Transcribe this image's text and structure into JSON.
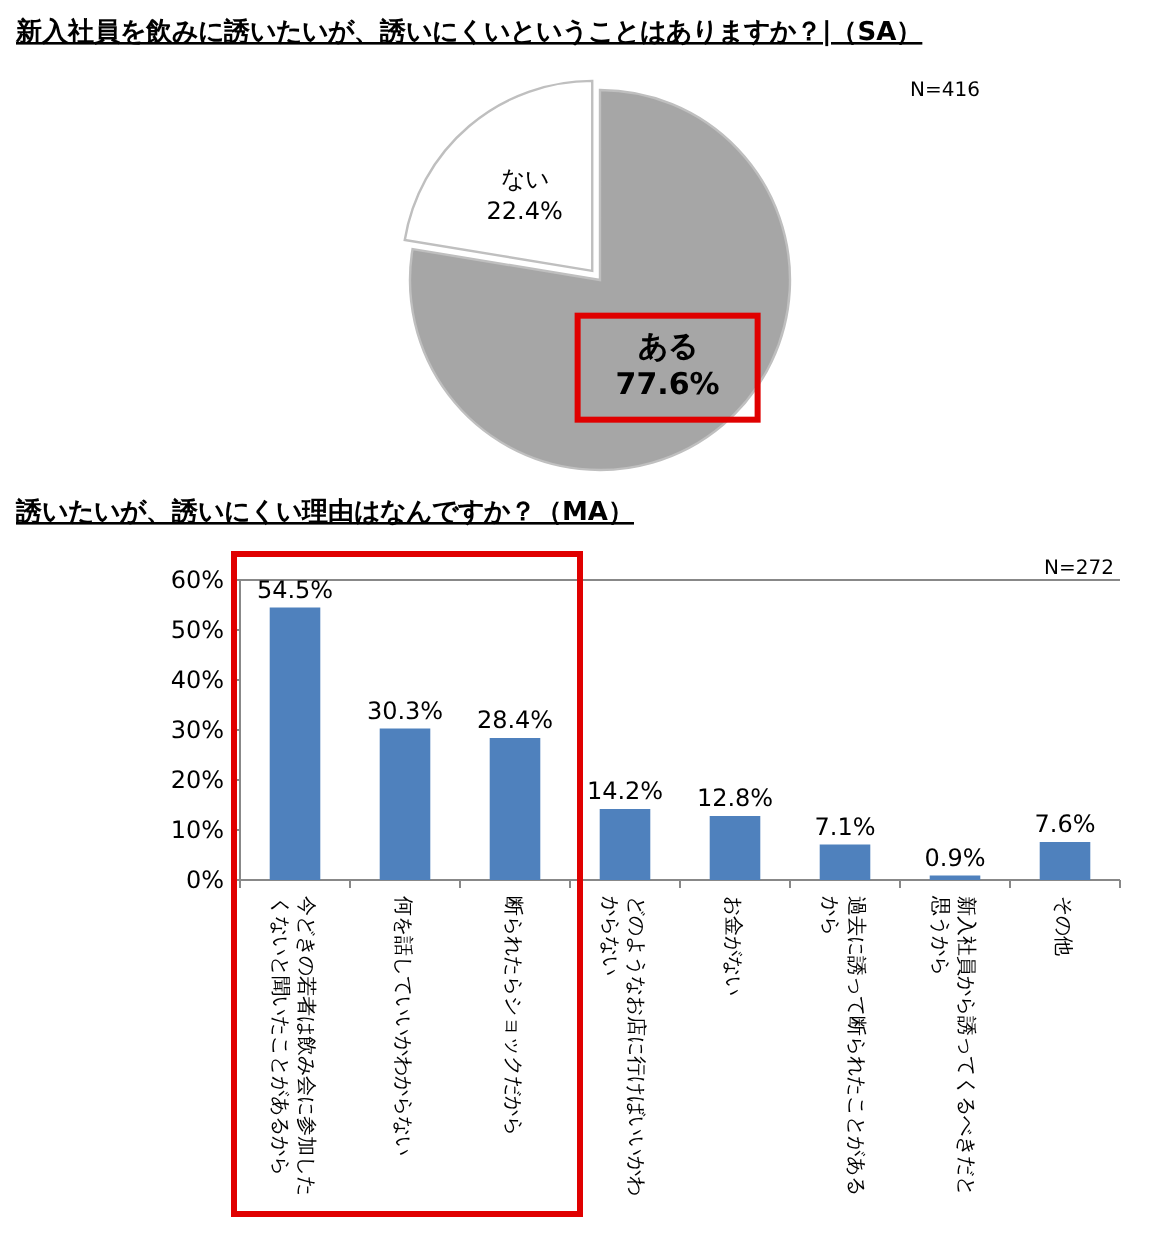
{
  "chart_data": [
    {
      "type": "pie",
      "title": "新入社員を飲みに誘いたいが、誘いにくいということはありますか？|（SA）",
      "categories": [
        "ある",
        "ない"
      ],
      "values": [
        77.6,
        22.4
      ],
      "colors": [
        "#a6a6a6",
        "#ffffff"
      ],
      "value_labels": [
        "77.6%",
        "22.4%"
      ],
      "annotations": [
        "N=416"
      ]
    },
    {
      "type": "bar",
      "title": "誘いたいが、誘いにくい理由はなんですか？（MA）",
      "categories": [
        "今どきの若者は飲み会に参加したくないと聞いたことがあるから",
        "何を話していいかわからない",
        "断られたらショックだから",
        "どのようなお店に行けばいいかわからない",
        "お金がない",
        "過去に誘って断られたことがあるから",
        "新入社員から誘ってくるべきだと思うから",
        "その他"
      ],
      "values": [
        54.5,
        30.3,
        28.4,
        14.2,
        12.8,
        7.1,
        0.9,
        7.6
      ],
      "color": "#4f81bd",
      "value_labels": [
        "54.5%",
        "30.3%",
        "28.4%",
        "14.2%",
        "12.8%",
        "7.1%",
        "0.9%",
        "7.6%"
      ],
      "ylim": [
        0,
        60
      ],
      "yticks": [
        {
          "value": 0,
          "label": "0%"
        },
        {
          "value": 10,
          "label": "10%"
        },
        {
          "value": 20,
          "label": "20%"
        },
        {
          "value": 30,
          "label": "30%"
        },
        {
          "value": 40,
          "label": "40%"
        },
        {
          "value": 50,
          "label": "50%"
        },
        {
          "value": 60,
          "label": "60%"
        }
      ],
      "annotations": [
        "N=272"
      ]
    }
  ]
}
